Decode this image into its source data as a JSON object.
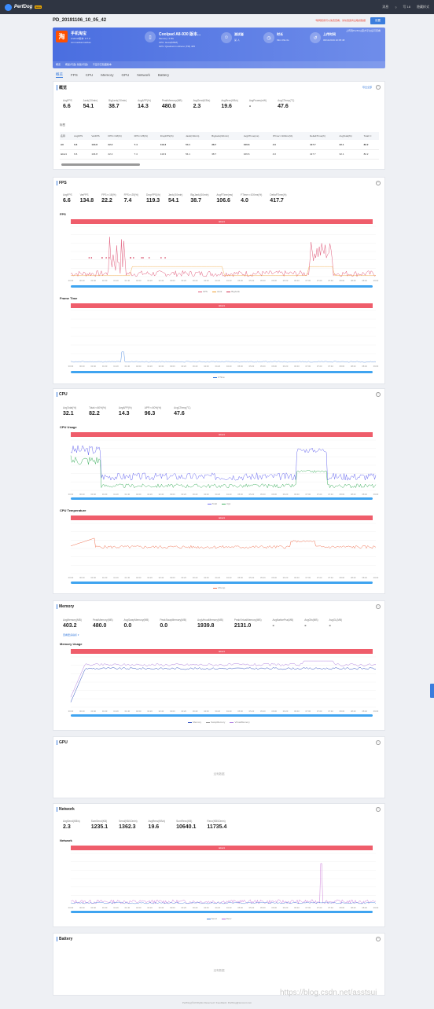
{
  "topbar": {
    "brand": "PerfDog",
    "badge": "Beta",
    "items": [
      "消息",
      "?",
      "写 18",
      "隐藏样式"
    ]
  },
  "header": {
    "title": "PD_20191106_10_05_42",
    "notice": "*联网使用可以免费查看，请勿泄露商业敏感数据",
    "button": "设置"
  },
  "app": {
    "icon": "淘",
    "name": "手机淘宝",
    "sub1": "Android版本: 9.7.0",
    "sub2": "com.taobao.taobao"
  },
  "device": {
    "name": "Coolpad A8-930 版本...",
    "memory": "Memory: 2.8G",
    "cpu": "CPU: Hexa(MSM)",
    "gpu": "GPU: Qualcomm Adreno (TM) 405"
  },
  "recorder": {
    "label": "测试者",
    "value": "某 人"
  },
  "duration": {
    "label": "时长",
    "value": "09m 09s 0s"
  },
  "upload": {
    "label": "上传时间",
    "value": "06/11/2019 10:05:48",
    "note": "上传到PerfDog官方平台后可查看"
  },
  "panel_strip": [
    "概览",
    "概述(可选) 创建(可选)",
    "不显示已隐藏版本"
  ],
  "tabs": [
    "概览",
    "FPS",
    "CPU",
    "Memory",
    "GPU",
    "Network",
    "Battery"
  ],
  "overview": {
    "title": "概览",
    "link": "导出全部",
    "metrics": [
      {
        "label": "AvgFPS",
        "value": "6.6"
      },
      {
        "label": "Jank(/10min)",
        "value": "54.1"
      },
      {
        "label": "BigJank(/10min)",
        "value": "38.7"
      },
      {
        "label": "AvgAPP(%)",
        "value": "14.3"
      },
      {
        "label": "PeakMemory(MB)",
        "value": "480.0"
      },
      {
        "label": "AvgSend(KB/s)",
        "value": "2.3"
      },
      {
        "label": "AvgRecv(KB/s)",
        "value": "19.6"
      },
      {
        "label": "AvgPower(mW)",
        "value": "-"
      },
      {
        "label": "AvgCTemp(°C)",
        "value": "47.6"
      }
    ],
    "labels_title": "标签",
    "table": {
      "headers": [
        "名称",
        "AvgFPS",
        "VarFPS",
        "FPS>=18(%)",
        "FPS>=25(%)",
        "DropFPS(/h)",
        "Jank(/10min)",
        "BigJank(/10min)",
        "AvgFTime(ms)",
        "FTime>=100ms(%)",
        "DeltaFTime(/h)",
        "AvgTotal(%)",
        "Total>="
      ],
      "rows": [
        [
          "All",
          "6.6",
          "134.8",
          "22.2",
          "7.4",
          "119.3",
          "54.1",
          "38.7",
          "106.6",
          "4.0",
          "417.7",
          "32.1",
          "82.2"
        ],
        [
          "label1",
          "6.6",
          "134.8",
          "22.2",
          "7.4",
          "119.3",
          "54.1",
          "38.7",
          "106.6",
          "4.0",
          "417.7",
          "32.1",
          "82.2"
        ]
      ]
    }
  },
  "fps": {
    "title": "FPS",
    "metrics": [
      {
        "label": "AvgFPS",
        "value": "6.6"
      },
      {
        "label": "VarFPS",
        "value": "134.8"
      },
      {
        "label": "FPS>=18(%)",
        "value": "22.2"
      },
      {
        "label": "FPS>=25(%)",
        "value": "7.4"
      },
      {
        "label": "DropFPS(/h)",
        "value": "119.3"
      },
      {
        "label": "Jank(/10min)",
        "value": "54.1"
      },
      {
        "label": "BigJank(/10min)",
        "value": "38.7"
      },
      {
        "label": "AvgFTime(ms)",
        "value": "106.6"
      },
      {
        "label": "FTime>=100ms(%)",
        "value": "4.0"
      },
      {
        "label": "DeltaFTime(/h)",
        "value": "417.7"
      }
    ],
    "chart_title": "FPS",
    "label_bar": "label1",
    "legend": [
      "FPS",
      "Jank",
      "BigJank"
    ],
    "ftime_title": "Frame Time",
    "ftime_legend": [
      "FTime"
    ]
  },
  "cpu": {
    "title": "CPU",
    "metrics": [
      {
        "label": "AvgTotal(%)",
        "value": "32.1"
      },
      {
        "label": "Total>=60%(%)",
        "value": "82.2"
      },
      {
        "label": "AvgAPP(%)",
        "value": "14.3"
      },
      {
        "label": "APP>=50%(%)",
        "value": "96.3"
      },
      {
        "label": "AvgCTemp(°C)",
        "value": "47.6"
      }
    ],
    "usage_title": "CPU Usage",
    "usage_legend": [
      "Total",
      "App"
    ],
    "temp_title": "CPU Temperature",
    "temp_legend": [
      "CTemp"
    ],
    "label_bar": "label1"
  },
  "memory": {
    "title": "Memory",
    "metrics": [
      {
        "label": "AvgMemory(MB)",
        "value": "403.2"
      },
      {
        "label": "PeakMemory(MB)",
        "value": "480.0"
      },
      {
        "label": "AvgSwapMemory(MB)",
        "value": "0.0"
      },
      {
        "label": "PeakSwapMemory(MB)",
        "value": "0.0"
      },
      {
        "label": "AvgVirtualMemory(MB)",
        "value": "1939.8"
      },
      {
        "label": "PeakVirtualMemory(MB)",
        "value": "2131.0"
      },
      {
        "label": "AvgNativePss(MB)",
        "value": "-"
      },
      {
        "label": "AvgGfx(MB)",
        "value": "-"
      },
      {
        "label": "AvgGL(MB)",
        "value": "-"
      }
    ],
    "more": "查看更多指标 ▾",
    "usage_title": "Memory Usage",
    "legend": [
      "Memory",
      "SwapMemory",
      "VirtualMemory"
    ],
    "label_bar": "label1"
  },
  "gpu": {
    "title": "GPU",
    "empty": "没有数据"
  },
  "network": {
    "title": "Network",
    "metrics": [
      {
        "label": "AvgSend(KB/s)",
        "value": "2.3"
      },
      {
        "label": "SumSend(KB)",
        "value": "1235.1"
      },
      {
        "label": "Send(KB/10min)",
        "value": "1362.3"
      },
      {
        "label": "AvgRecv(KB/s)",
        "value": "19.6"
      },
      {
        "label": "SumRecv(KB)",
        "value": "10640.1"
      },
      {
        "label": "Recv(KB/10min)",
        "value": "11735.4"
      }
    ],
    "chart_title": "Network",
    "legend": [
      "Send",
      "Recv"
    ],
    "label_bar": "label1"
  },
  "battery": {
    "title": "Battery",
    "empty": "没有数据"
  },
  "x_ticks": [
    "00:00",
    "00:20",
    "00:40",
    "01:00",
    "01:20",
    "01:40",
    "02:00",
    "02:20",
    "02:40",
    "03:00",
    "03:20",
    "03:40",
    "04:00",
    "04:20",
    "04:40",
    "05:00",
    "05:20",
    "05:40",
    "06:00",
    "06:20",
    "06:40",
    "07:00",
    "07:20",
    "07:40",
    "08:00",
    "08:20",
    "08:40",
    "09:00"
  ],
  "footer": "PerfDog(©All Rights Reserved / Feedback: PerfDog@tencent.com",
  "watermark": "https://blog.csdn.net/asstsui",
  "colors": {
    "accent": "#3b7ddd",
    "red_bar": "#ef5d6b",
    "fps": "#e05a7a",
    "jank": "#f0a030",
    "bigjank": "#d03050",
    "total": "#6a6af0",
    "app": "#40b060",
    "temp": "#f07050",
    "memory": "#3050c0",
    "virtual": "#b080e0",
    "recv": "#c060d0",
    "send": "#3b7ddd"
  }
}
